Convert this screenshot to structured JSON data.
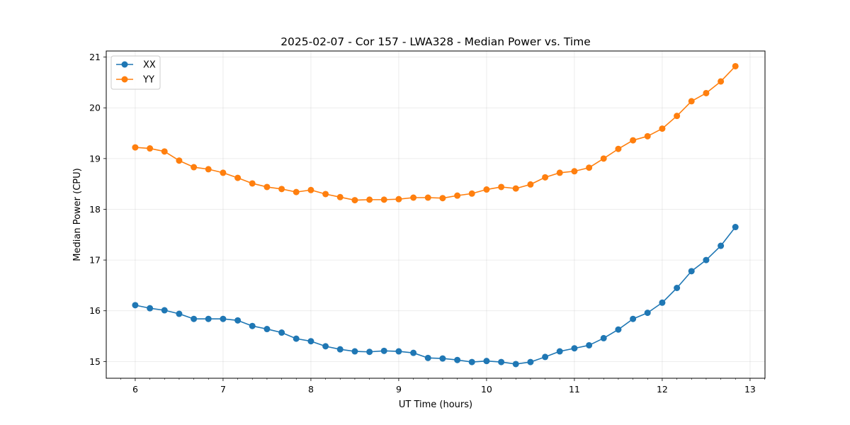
{
  "chart_data": {
    "type": "line",
    "title": "2025-02-07 - Cor 157 - LWA328 - Median Power vs. Time",
    "xlabel": "UT Time (hours)",
    "ylabel": "Median Power (CPU)",
    "xlim": [
      5.67,
      13.17
    ],
    "ylim": [
      14.67,
      21.12
    ],
    "xticks": [
      6,
      7,
      8,
      9,
      10,
      11,
      12,
      13
    ],
    "yticks": [
      15,
      16,
      17,
      18,
      19,
      20,
      21
    ],
    "grid": true,
    "legend_position": "top-left",
    "x": [
      6.0,
      6.167,
      6.333,
      6.5,
      6.667,
      6.833,
      7.0,
      7.167,
      7.333,
      7.5,
      7.667,
      7.833,
      8.0,
      8.167,
      8.333,
      8.5,
      8.667,
      8.833,
      9.0,
      9.167,
      9.333,
      9.5,
      9.667,
      9.833,
      10.0,
      10.167,
      10.333,
      10.5,
      10.667,
      10.833,
      11.0,
      11.167,
      11.333,
      11.5,
      11.667,
      11.833,
      12.0,
      12.167,
      12.333,
      12.5,
      12.667,
      12.833
    ],
    "series": [
      {
        "name": "XX",
        "color": "#1f77b4",
        "values": [
          16.11,
          16.05,
          16.01,
          15.94,
          15.84,
          15.84,
          15.84,
          15.81,
          15.7,
          15.64,
          15.57,
          15.45,
          15.4,
          15.3,
          15.24,
          15.2,
          15.19,
          15.21,
          15.2,
          15.17,
          15.07,
          15.06,
          15.03,
          14.99,
          15.01,
          14.99,
          14.95,
          14.99,
          15.09,
          15.2,
          15.26,
          15.32,
          15.46,
          15.63,
          15.84,
          15.96,
          16.16,
          16.45,
          16.78,
          17.0,
          17.28,
          17.65
        ]
      },
      {
        "name": "YY",
        "color": "#ff7f0e",
        "values": [
          19.22,
          19.2,
          19.14,
          18.96,
          18.83,
          18.79,
          18.72,
          18.62,
          18.51,
          18.44,
          18.4,
          18.34,
          18.38,
          18.3,
          18.24,
          18.18,
          18.19,
          18.19,
          18.2,
          18.23,
          18.23,
          18.22,
          18.27,
          18.31,
          18.39,
          18.44,
          18.41,
          18.49,
          18.63,
          18.72,
          18.75,
          18.82,
          19.0,
          19.19,
          19.36,
          19.44,
          19.59,
          19.84,
          20.13,
          20.29,
          20.52,
          20.82
        ]
      }
    ]
  }
}
